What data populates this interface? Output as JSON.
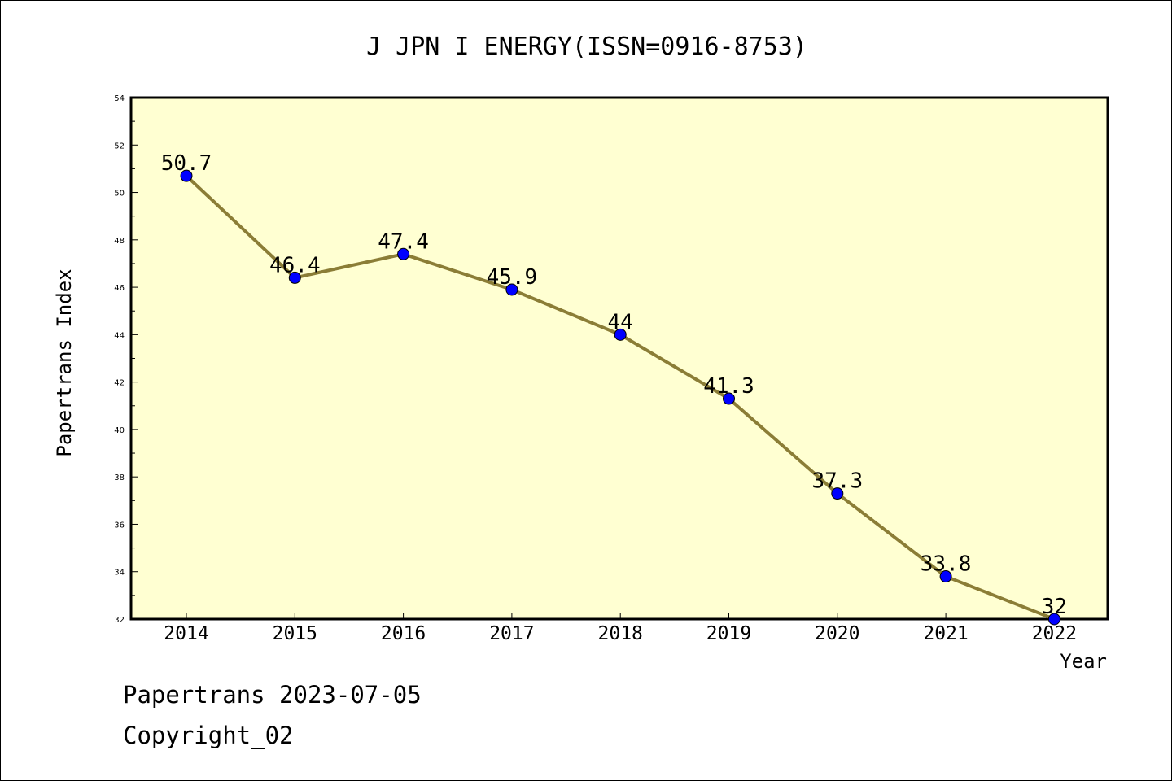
{
  "chart_data": {
    "type": "line",
    "title": "J JPN I ENERGY(ISSN=0916-8753)",
    "xlabel": "Year",
    "ylabel": "Papertrans Index",
    "categories": [
      "2014",
      "2015",
      "2016",
      "2017",
      "2018",
      "2019",
      "2020",
      "2021",
      "2022"
    ],
    "series": [
      {
        "values": [
          50.7,
          46.4,
          47.4,
          45.9,
          44,
          41.3,
          37.3,
          33.8,
          32
        ],
        "labels": [
          "50.7",
          "46.4",
          "47.4",
          "45.9",
          "44",
          "41.3",
          "37.3",
          "33.8",
          "32"
        ]
      }
    ],
    "ylim": [
      32,
      54
    ],
    "yticks": [
      "32",
      "34",
      "36",
      "38",
      "40",
      "42",
      "44",
      "46",
      "48",
      "50",
      "52",
      "54"
    ],
    "grid": false,
    "colors": {
      "plot_background": "#ffffd2",
      "line": "#8b7d36",
      "marker": "#0000ff"
    }
  },
  "footer": {
    "line1": "Papertrans 2023-07-05",
    "line2": "Copyright_02"
  }
}
